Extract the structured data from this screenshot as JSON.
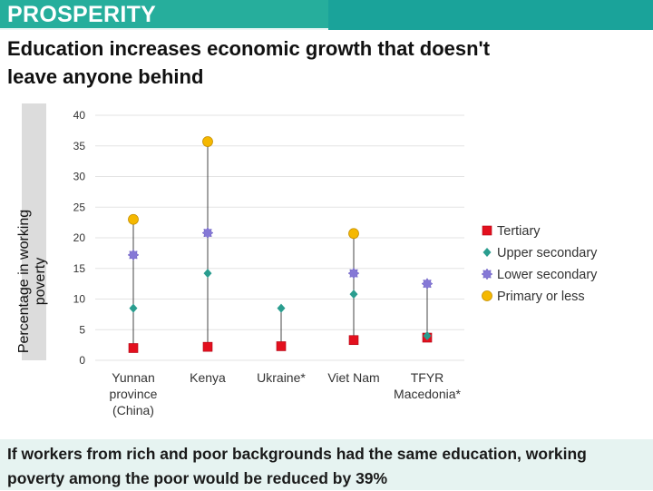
{
  "header": {
    "section": "PROSPERITY",
    "headline": "Education increases economic  growth that doesn't\nleave anyone behind"
  },
  "footer": {
    "text": "If workers from rich and poor backgrounds had the same education, working poverty among the poor would be reduced by 39%"
  },
  "chart_data": {
    "type": "scatter",
    "ylabel": "Percentage in working poverty",
    "ylim": [
      0,
      40
    ],
    "yticks": [
      0,
      5,
      10,
      15,
      20,
      25,
      30,
      35,
      40
    ],
    "grid": true,
    "legend": "right",
    "categories": [
      "Yunnan province (China)",
      "Kenya",
      "Ukraine*",
      "Viet Nam",
      "TFYR Macedonia*"
    ],
    "series": [
      {
        "name": "Tertiary",
        "color": "#e3101e",
        "marker": "square",
        "values": [
          2.0,
          2.2,
          2.3,
          3.3,
          3.7
        ]
      },
      {
        "name": "Upper secondary",
        "color": "#2a9d8f",
        "marker": "diamond",
        "values": [
          8.5,
          14.2,
          8.5,
          10.8,
          4.0
        ]
      },
      {
        "name": "Lower secondary",
        "color": "#8578d6",
        "marker": "star",
        "values": [
          17.2,
          20.8,
          null,
          14.2,
          12.5
        ]
      },
      {
        "name": "Primary or less",
        "color": "#f5b800",
        "marker": "circle",
        "values": [
          23.0,
          35.7,
          null,
          20.7,
          null
        ]
      }
    ]
  }
}
